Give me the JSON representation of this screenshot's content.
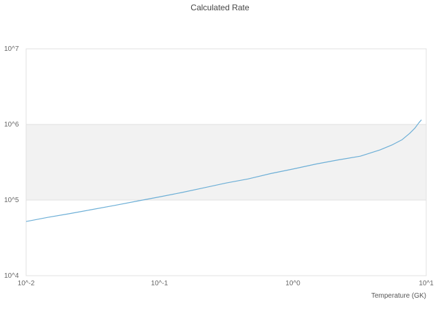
{
  "title": "Calculated Rate",
  "x_axis": {
    "label": "Temperature (GK)",
    "tick_labels": [
      "10^-2",
      "10^-1",
      "10^0",
      "10^1"
    ],
    "tick_values": [
      0.01,
      0.1,
      1,
      10
    ]
  },
  "y_axis": {
    "label": "",
    "tick_labels": [
      "10^4",
      "10^5",
      "10^6",
      "10^7"
    ],
    "tick_values": [
      10000,
      100000,
      1000000,
      10000000
    ]
  },
  "colors": {
    "line": "#6baed6",
    "band_fill": "#f2f2f2",
    "plot_border": "#e0e0e0",
    "tick_text": "#666666",
    "title_text": "#444444"
  },
  "chart_data": {
    "type": "line",
    "title": "Calculated Rate",
    "xlabel": "Temperature (GK)",
    "ylabel": "",
    "xscale": "log",
    "yscale": "log",
    "xlim": [
      0.01,
      10
    ],
    "ylim": [
      10000,
      10000000
    ],
    "grid": "off",
    "legend": "none",
    "shaded_band_y": [
      100000,
      1000000
    ],
    "series": [
      {
        "name": "Calculated Rate",
        "x": [
          0.01,
          0.0145,
          0.021,
          0.03,
          0.046,
          0.068,
          0.1,
          0.147,
          0.215,
          0.316,
          0.46,
          0.68,
          1.0,
          1.5,
          2.2,
          3.2,
          4.5,
          5.6,
          6.6,
          7.5,
          8.2,
          8.8,
          9.2
        ],
        "y": [
          52000,
          59000,
          66000,
          74000,
          85000,
          97000,
          110000,
          126000,
          145000,
          168000,
          190000,
          224000,
          257000,
          300000,
          340000,
          380000,
          460000,
          540000,
          630000,
          760000,
          890000,
          1050000,
          1150000
        ]
      }
    ]
  }
}
